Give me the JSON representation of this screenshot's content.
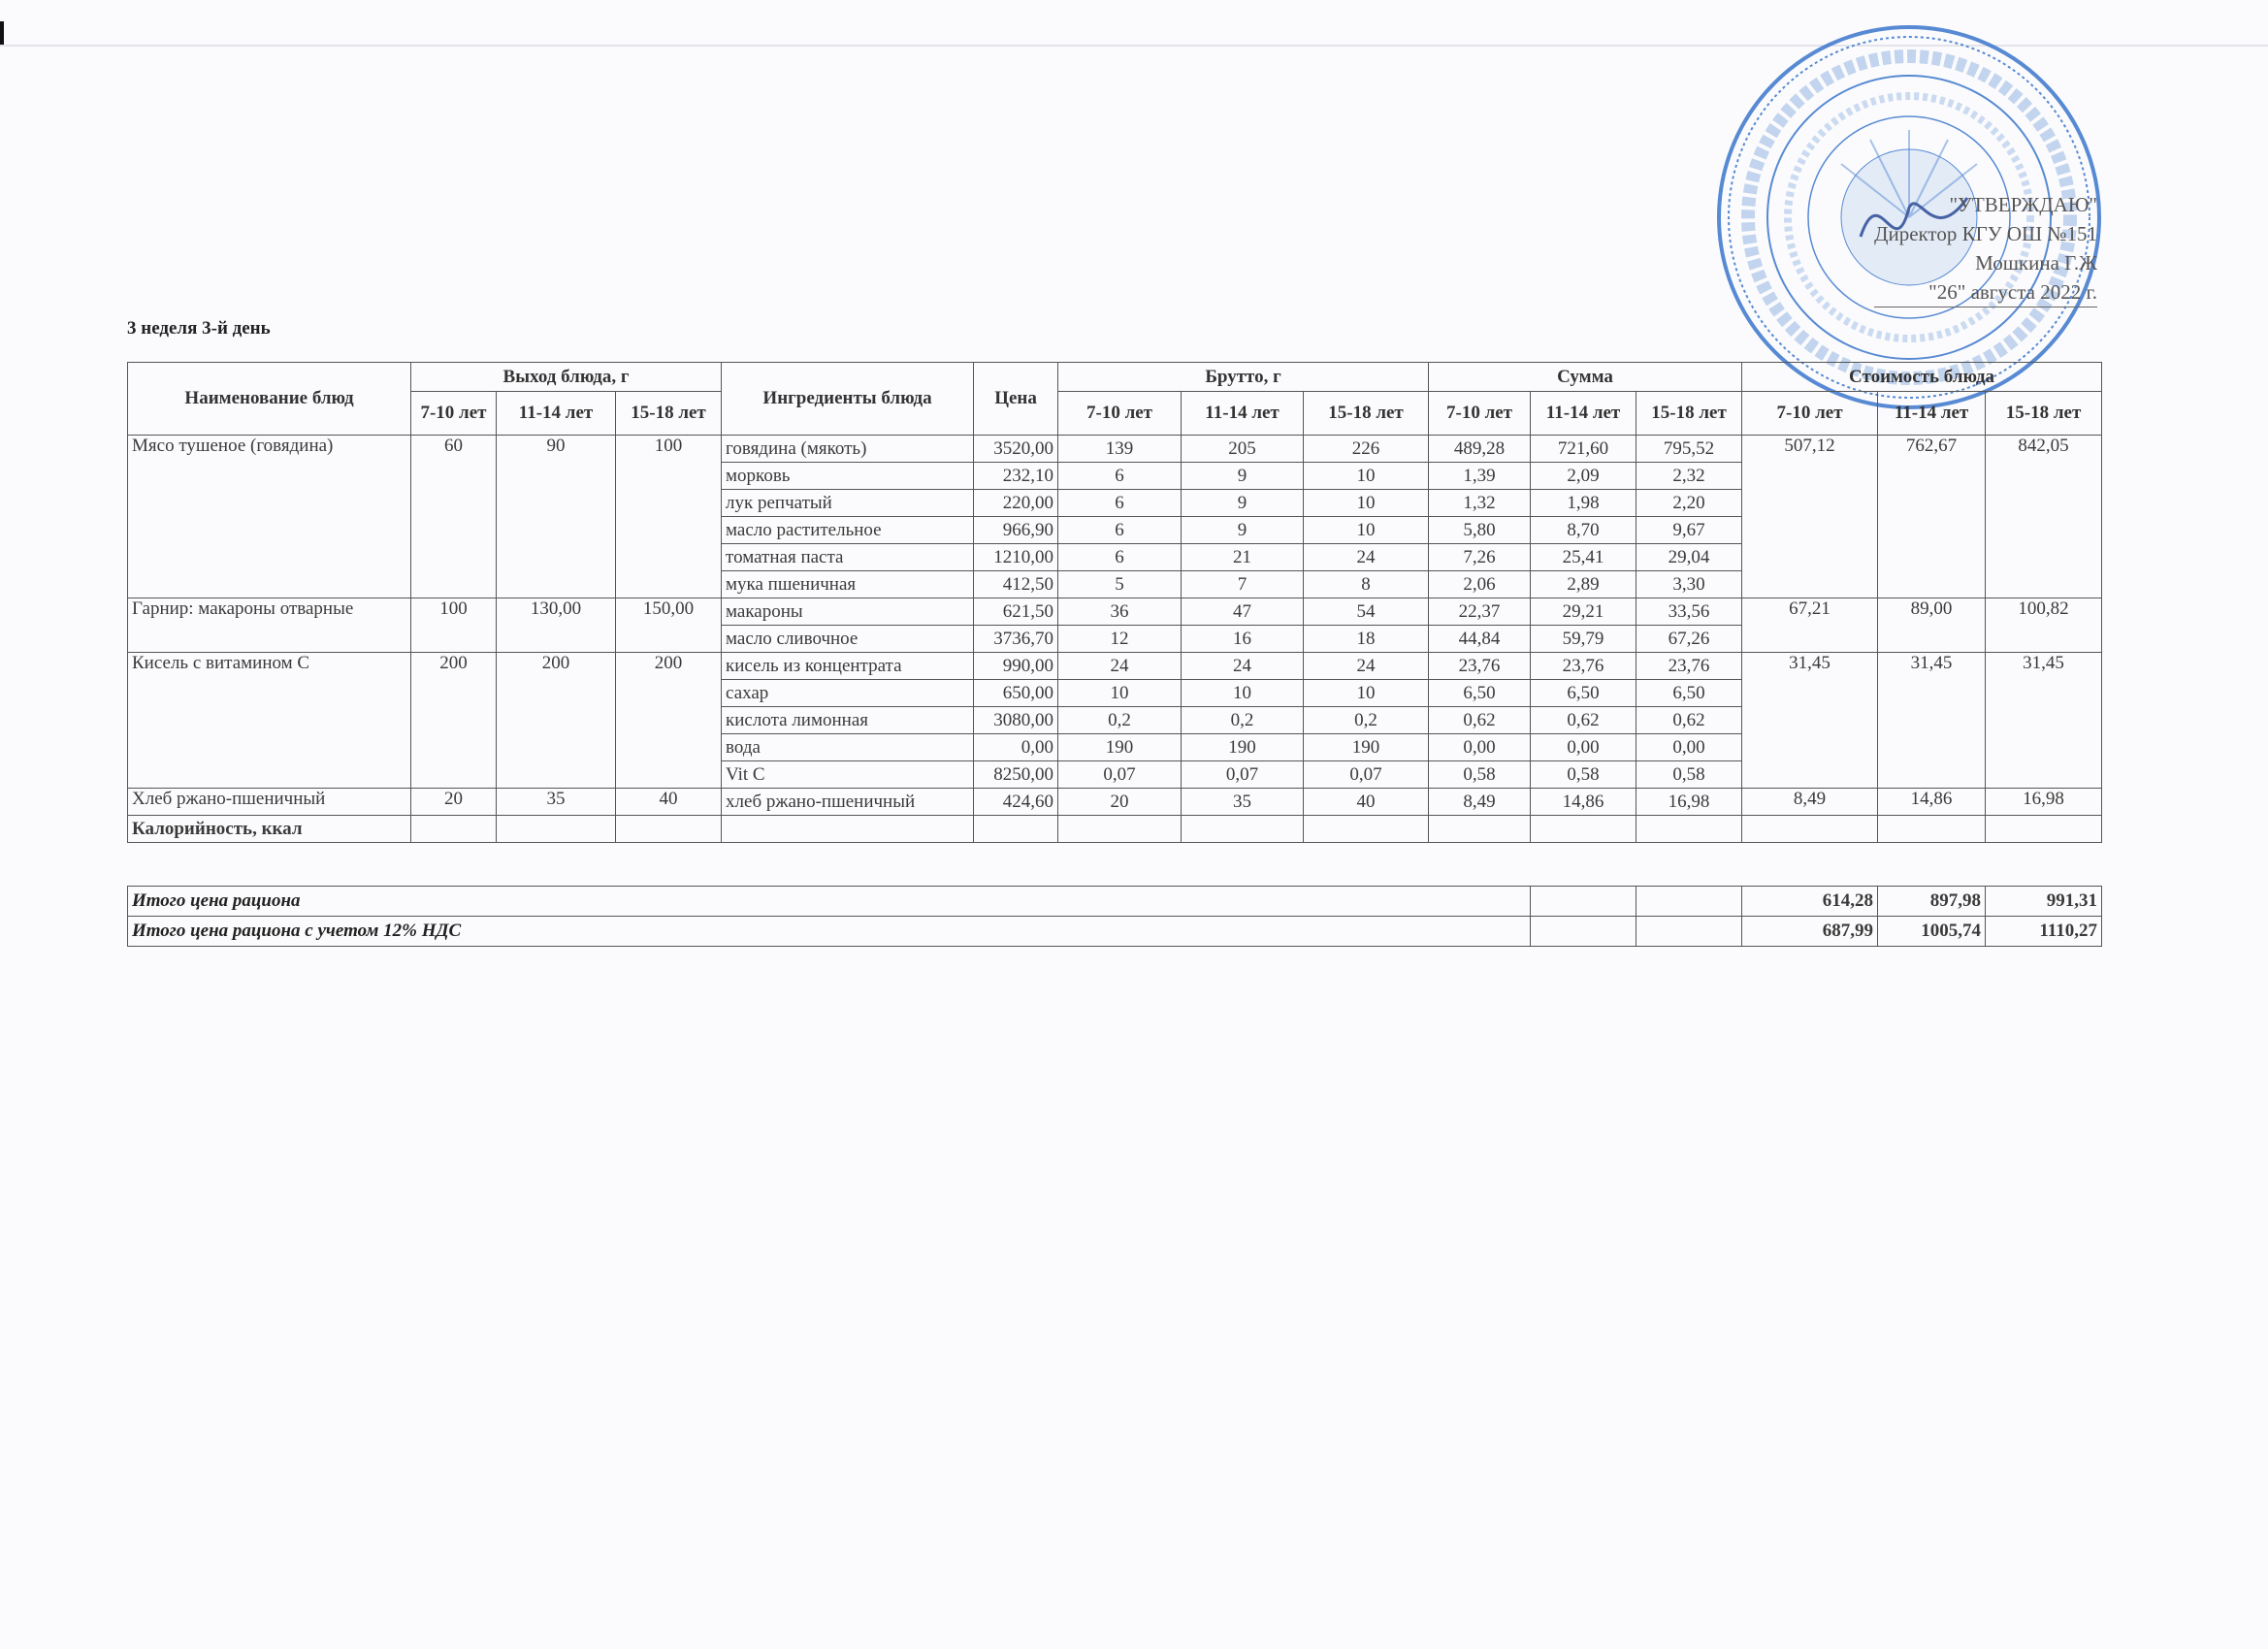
{
  "approval": {
    "line1": "\"УТВЕРЖДАЮ\"",
    "line2": "Директор КГУ ОШ №151",
    "line3": "Мошкина Г.Ж",
    "line4": "\"26\"   августа   2022 г."
  },
  "stamp": {
    "outer_text": "ҚАЗАҚСТАН РЕСПУБЛИКАСЫ «АЛМАТЫ ҚАЛАСЫ БІЛІМ БАСҚАРМАСЫНЫҢ «№151 ЖАЛПЫ БІЛІМ БЕРЕТІН МЕКТЕП» КОММУНАЛДЫҚ МЕМЛЕКЕТТІК МЕКЕМЕСІ",
    "inner_text": "БСН/БИН 961140000679",
    "color": "#2f6fc9"
  },
  "title": "3 неделя 3-й день",
  "headers": {
    "dish_name": "Наименование блюд",
    "yield": "Выход блюда, г",
    "ingredients": "Ингредиенты блюда",
    "price": "Цена",
    "brutto": "Брутто, г",
    "sum": "Сумма",
    "cost": "Стоимость блюда",
    "ages": [
      "7-10 лет",
      "11-14 лет",
      "15-18 лет"
    ]
  },
  "dishes": [
    {
      "name": "Мясо тушеное (говядина)",
      "yield": [
        "60",
        "90",
        "100"
      ],
      "cost": [
        "507,12",
        "762,67",
        "842,05"
      ],
      "ingredients": [
        {
          "name": "говядина (мякоть)",
          "price": "3520,00",
          "brutto": [
            "139",
            "205",
            "226"
          ],
          "sum": [
            "489,28",
            "721,60",
            "795,52"
          ]
        },
        {
          "name": "морковь",
          "price": "232,10",
          "brutto": [
            "6",
            "9",
            "10"
          ],
          "sum": [
            "1,39",
            "2,09",
            "2,32"
          ]
        },
        {
          "name": "лук репчатый",
          "price": "220,00",
          "brutto": [
            "6",
            "9",
            "10"
          ],
          "sum": [
            "1,32",
            "1,98",
            "2,20"
          ]
        },
        {
          "name": "масло растительное",
          "price": "966,90",
          "brutto": [
            "6",
            "9",
            "10"
          ],
          "sum": [
            "5,80",
            "8,70",
            "9,67"
          ]
        },
        {
          "name": "томатная паста",
          "price": "1210,00",
          "brutto": [
            "6",
            "21",
            "24"
          ],
          "sum": [
            "7,26",
            "25,41",
            "29,04"
          ]
        },
        {
          "name": "мука пшеничная",
          "price": "412,50",
          "brutto": [
            "5",
            "7",
            "8"
          ],
          "sum": [
            "2,06",
            "2,89",
            "3,30"
          ]
        }
      ]
    },
    {
      "name": "Гарнир: макароны отварные",
      "yield": [
        "100",
        "130,00",
        "150,00"
      ],
      "cost": [
        "67,21",
        "89,00",
        "100,82"
      ],
      "ingredients": [
        {
          "name": "макароны",
          "price": "621,50",
          "brutto": [
            "36",
            "47",
            "54"
          ],
          "sum": [
            "22,37",
            "29,21",
            "33,56"
          ]
        },
        {
          "name": "масло сливочное",
          "price": "3736,70",
          "brutto": [
            "12",
            "16",
            "18"
          ],
          "sum": [
            "44,84",
            "59,79",
            "67,26"
          ]
        }
      ]
    },
    {
      "name": "Кисель с витамином С",
      "yield": [
        "200",
        "200",
        "200"
      ],
      "cost": [
        "31,45",
        "31,45",
        "31,45"
      ],
      "ingredients": [
        {
          "name": "кисель из концентрата",
          "price": "990,00",
          "brutto": [
            "24",
            "24",
            "24"
          ],
          "sum": [
            "23,76",
            "23,76",
            "23,76"
          ]
        },
        {
          "name": "сахар",
          "price": "650,00",
          "brutto": [
            "10",
            "10",
            "10"
          ],
          "sum": [
            "6,50",
            "6,50",
            "6,50"
          ]
        },
        {
          "name": "кислота лимонная",
          "price": "3080,00",
          "brutto": [
            "0,2",
            "0,2",
            "0,2"
          ],
          "sum": [
            "0,62",
            "0,62",
            "0,62"
          ]
        },
        {
          "name": "вода",
          "price": "0,00",
          "brutto": [
            "190",
            "190",
            "190"
          ],
          "sum": [
            "0,00",
            "0,00",
            "0,00"
          ]
        },
        {
          "name": "Vit C",
          "price": "8250,00",
          "brutto": [
            "0,07",
            "0,07",
            "0,07"
          ],
          "sum": [
            "0,58",
            "0,58",
            "0,58"
          ]
        }
      ]
    },
    {
      "name": "Хлеб ржано-пшеничный",
      "yield": [
        "20",
        "35",
        "40"
      ],
      "cost": [
        "8,49",
        "14,86",
        "16,98"
      ],
      "ingredients": [
        {
          "name": "хлеб ржано-пшеничный",
          "price": "424,60",
          "brutto": [
            "20",
            "35",
            "40"
          ],
          "sum": [
            "8,49",
            "14,86",
            "16,98"
          ]
        }
      ]
    }
  ],
  "calories_label": "Калорийность, ккал",
  "totals": [
    {
      "label": "Итого цена рациона",
      "values": [
        "614,28",
        "897,98",
        "991,31"
      ]
    },
    {
      "label": "Итого цена рациона с учетом 12% НДС",
      "values": [
        "687,99",
        "1005,74",
        "1110,27"
      ]
    }
  ]
}
